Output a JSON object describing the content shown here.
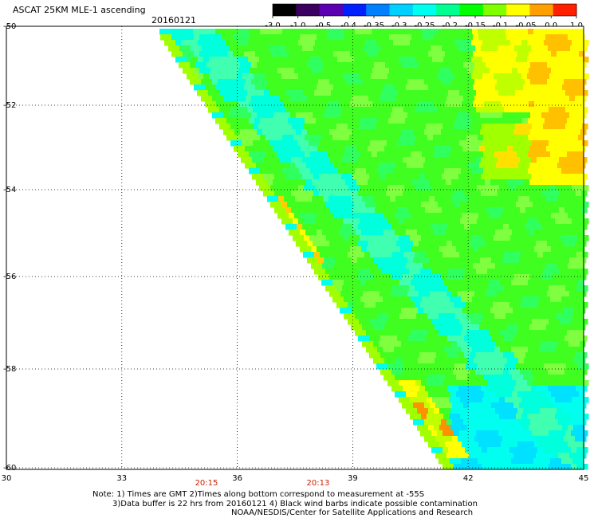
{
  "title": "ASCAT 25KM MLE-1 ascending",
  "date": "20160121",
  "colorbar": {
    "labels": [
      "-3.0",
      "-1.0",
      "-0.5",
      "-0.4",
      "-0.35",
      "-0.3",
      "-0.25",
      "-0.2",
      "-0.15",
      "-0.1",
      "-0.05",
      "0.0",
      "1.0"
    ],
    "colors": [
      "#000000",
      "#3a0060",
      "#5a00b0",
      "#0020ff",
      "#0080ff",
      "#00d0ff",
      "#00ffee",
      "#00ff90",
      "#00ff00",
      "#80ff00",
      "#ffff00",
      "#ffa000",
      "#ff2000"
    ]
  },
  "map": {
    "lat_labels": [
      "-50",
      "-52",
      "-54",
      "-56",
      "-58",
      "-60"
    ],
    "lon_labels": [
      "30",
      "33",
      "36",
      "39",
      "42",
      "45"
    ],
    "lat_range": [
      -60,
      -50
    ],
    "lon_range": [
      30,
      45
    ],
    "times": [
      {
        "label": "20:15",
        "lon": 35.2
      },
      {
        "label": "20:13",
        "lon": 38.1
      }
    ]
  },
  "notes": {
    "line1": "Note: 1) Times are GMT 2)Times along bottom correspond to measurement at -55S",
    "line2": "3)Data buffer is 22 hrs from 20160121 4) Black wind barbs indicate possible contamination",
    "line3": "NOAA/NESDIS/Center for Satellite Applications and Research"
  }
}
